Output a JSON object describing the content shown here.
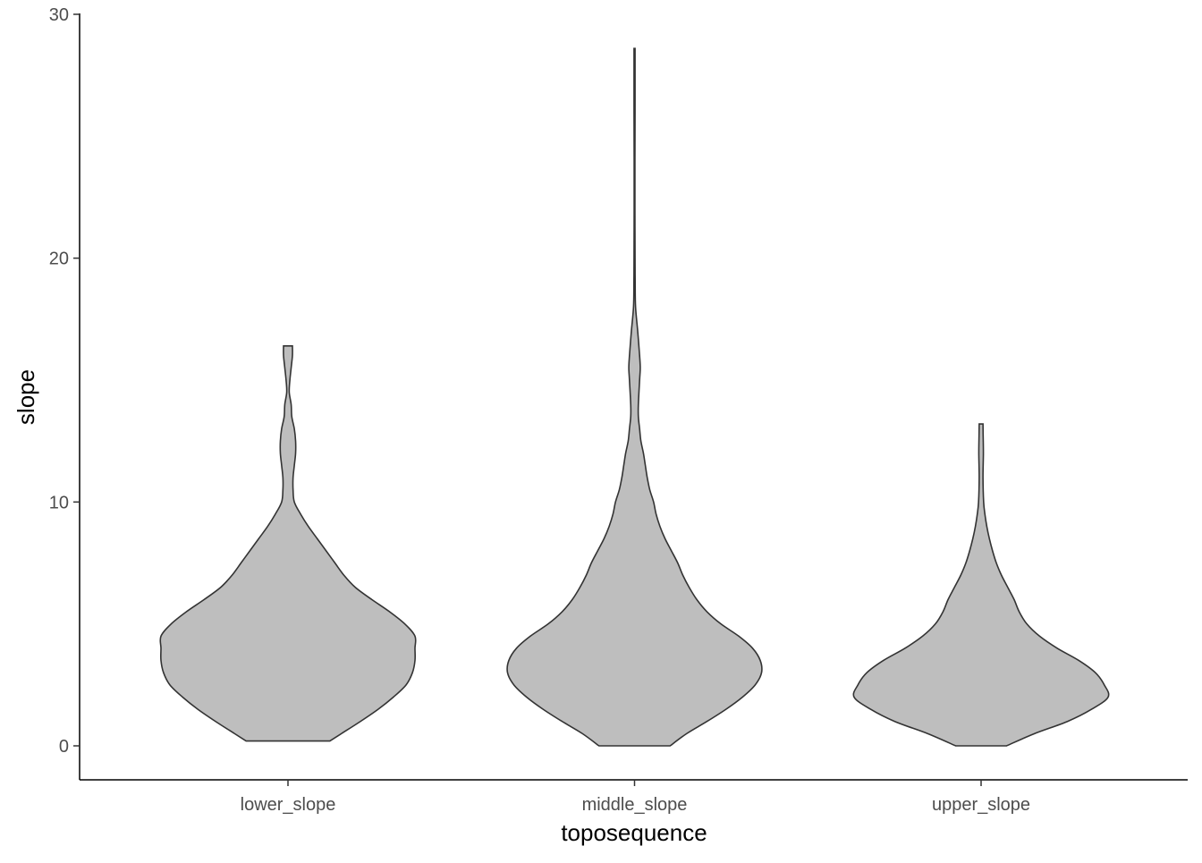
{
  "chart_data": {
    "type": "violin",
    "xlabel": "toposequence",
    "ylabel": "slope",
    "ylim": [
      0,
      30
    ],
    "yticks": [
      0,
      10,
      20,
      30
    ],
    "grid": false,
    "categories": [
      "lower_slope",
      "middle_slope",
      "upper_slope"
    ],
    "fill_color": "#bebebe",
    "outline_color": "#333333",
    "violins": [
      {
        "category": "lower_slope",
        "min": 0.2,
        "max": 16.4,
        "width_profile": [
          [
            0.2,
            0.33
          ],
          [
            0.5,
            0.42
          ],
          [
            1.0,
            0.57
          ],
          [
            1.5,
            0.71
          ],
          [
            2.0,
            0.83
          ],
          [
            2.5,
            0.93
          ],
          [
            3.0,
            0.98
          ],
          [
            3.5,
            1.0
          ],
          [
            4.0,
            1.0
          ],
          [
            4.5,
            1.0
          ],
          [
            5.0,
            0.92
          ],
          [
            5.5,
            0.8
          ],
          [
            6.0,
            0.66
          ],
          [
            6.5,
            0.53
          ],
          [
            7.0,
            0.44
          ],
          [
            7.5,
            0.37
          ],
          [
            8.0,
            0.3
          ],
          [
            8.5,
            0.23
          ],
          [
            9.0,
            0.16
          ],
          [
            9.5,
            0.1
          ],
          [
            10.0,
            0.05
          ],
          [
            10.5,
            0.04
          ],
          [
            11.0,
            0.04
          ],
          [
            11.5,
            0.05
          ],
          [
            12.0,
            0.06
          ],
          [
            12.5,
            0.06
          ],
          [
            13.0,
            0.05
          ],
          [
            13.5,
            0.03
          ],
          [
            14.0,
            0.025
          ],
          [
            14.5,
            0.01
          ],
          [
            15.0,
            0.015
          ],
          [
            15.5,
            0.025
          ],
          [
            16.0,
            0.035
          ],
          [
            16.4,
            0.035
          ]
        ]
      },
      {
        "category": "middle_slope",
        "min": 0.0,
        "max": 28.6,
        "width_profile": [
          [
            0.0,
            0.28
          ],
          [
            0.5,
            0.41
          ],
          [
            1.0,
            0.57
          ],
          [
            1.5,
            0.72
          ],
          [
            2.0,
            0.85
          ],
          [
            2.5,
            0.95
          ],
          [
            3.0,
            1.0
          ],
          [
            3.5,
            0.99
          ],
          [
            4.0,
            0.93
          ],
          [
            4.5,
            0.82
          ],
          [
            5.0,
            0.68
          ],
          [
            5.5,
            0.57
          ],
          [
            6.0,
            0.49
          ],
          [
            6.5,
            0.43
          ],
          [
            7.0,
            0.38
          ],
          [
            7.5,
            0.34
          ],
          [
            8.0,
            0.29
          ],
          [
            8.5,
            0.24
          ],
          [
            9.0,
            0.2
          ],
          [
            9.5,
            0.17
          ],
          [
            10.0,
            0.15
          ],
          [
            10.5,
            0.12
          ],
          [
            11.0,
            0.1
          ],
          [
            11.5,
            0.085
          ],
          [
            12.0,
            0.07
          ],
          [
            12.5,
            0.05
          ],
          [
            13.0,
            0.04
          ],
          [
            13.5,
            0.03
          ],
          [
            14.0,
            0.03
          ],
          [
            15.0,
            0.04
          ],
          [
            15.5,
            0.045
          ],
          [
            16.0,
            0.04
          ],
          [
            17.0,
            0.025
          ],
          [
            18.0,
            0.008
          ],
          [
            19.0,
            0.005
          ],
          [
            20.0,
            0.004
          ],
          [
            22.0,
            0.003
          ],
          [
            24.0,
            0.003
          ],
          [
            26.0,
            0.004
          ],
          [
            28.0,
            0.004
          ],
          [
            28.6,
            0.004
          ]
        ]
      },
      {
        "category": "upper_slope",
        "min": 0.0,
        "max": 13.2,
        "width_profile": [
          [
            0.0,
            0.2
          ],
          [
            0.5,
            0.42
          ],
          [
            1.0,
            0.68
          ],
          [
            1.5,
            0.87
          ],
          [
            2.0,
            1.0
          ],
          [
            2.5,
            0.97
          ],
          [
            3.0,
            0.9
          ],
          [
            3.5,
            0.77
          ],
          [
            4.0,
            0.6
          ],
          [
            4.5,
            0.46
          ],
          [
            5.0,
            0.36
          ],
          [
            5.5,
            0.3
          ],
          [
            6.0,
            0.26
          ],
          [
            6.5,
            0.21
          ],
          [
            7.0,
            0.16
          ],
          [
            7.5,
            0.12
          ],
          [
            8.0,
            0.09
          ],
          [
            8.5,
            0.065
          ],
          [
            9.0,
            0.045
          ],
          [
            9.5,
            0.03
          ],
          [
            10.0,
            0.02
          ],
          [
            11.0,
            0.015
          ],
          [
            12.0,
            0.018
          ],
          [
            12.8,
            0.016
          ],
          [
            13.2,
            0.015
          ]
        ]
      }
    ]
  }
}
